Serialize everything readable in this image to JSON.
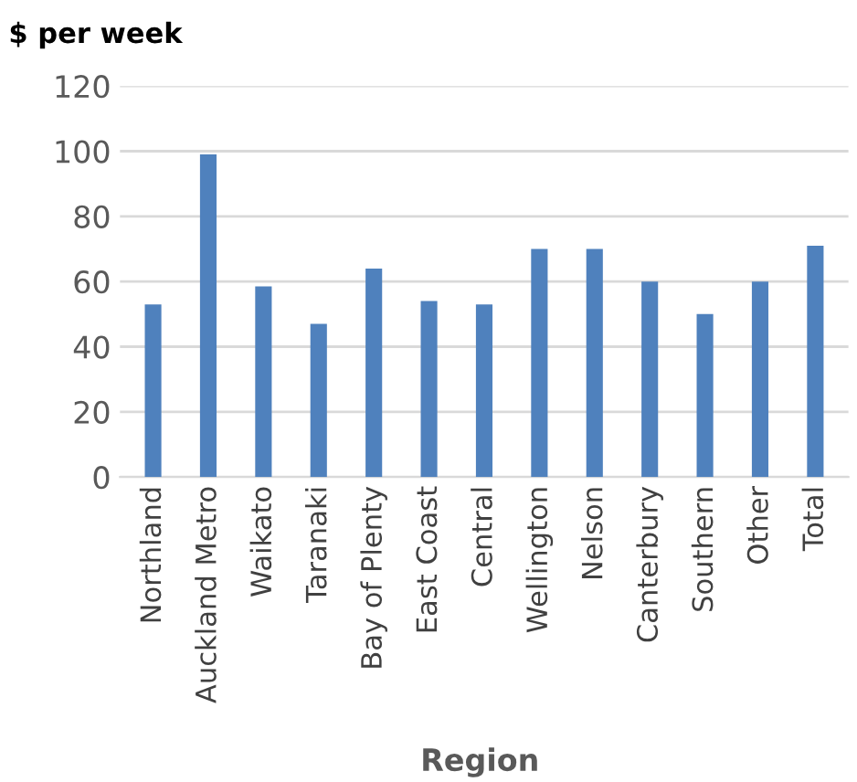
{
  "chart_data": {
    "type": "bar",
    "ylabel": "$ per week",
    "xlabel": "Region",
    "categories": [
      "Northland",
      "Auckland Metro",
      "Waikato",
      "Taranaki",
      "Bay of Plenty",
      "East Coast",
      "Central",
      "Wellington",
      "Nelson",
      "Canterbury",
      "Southern",
      "Other",
      "Total"
    ],
    "values": [
      53,
      99,
      58.5,
      47,
      64,
      54,
      53,
      70,
      70,
      60,
      50,
      60,
      71
    ],
    "color": "#4f81bd",
    "ylim": [
      0,
      120
    ],
    "yticks": [
      0,
      20,
      40,
      60,
      80,
      100,
      120
    ],
    "grid": "y"
  }
}
